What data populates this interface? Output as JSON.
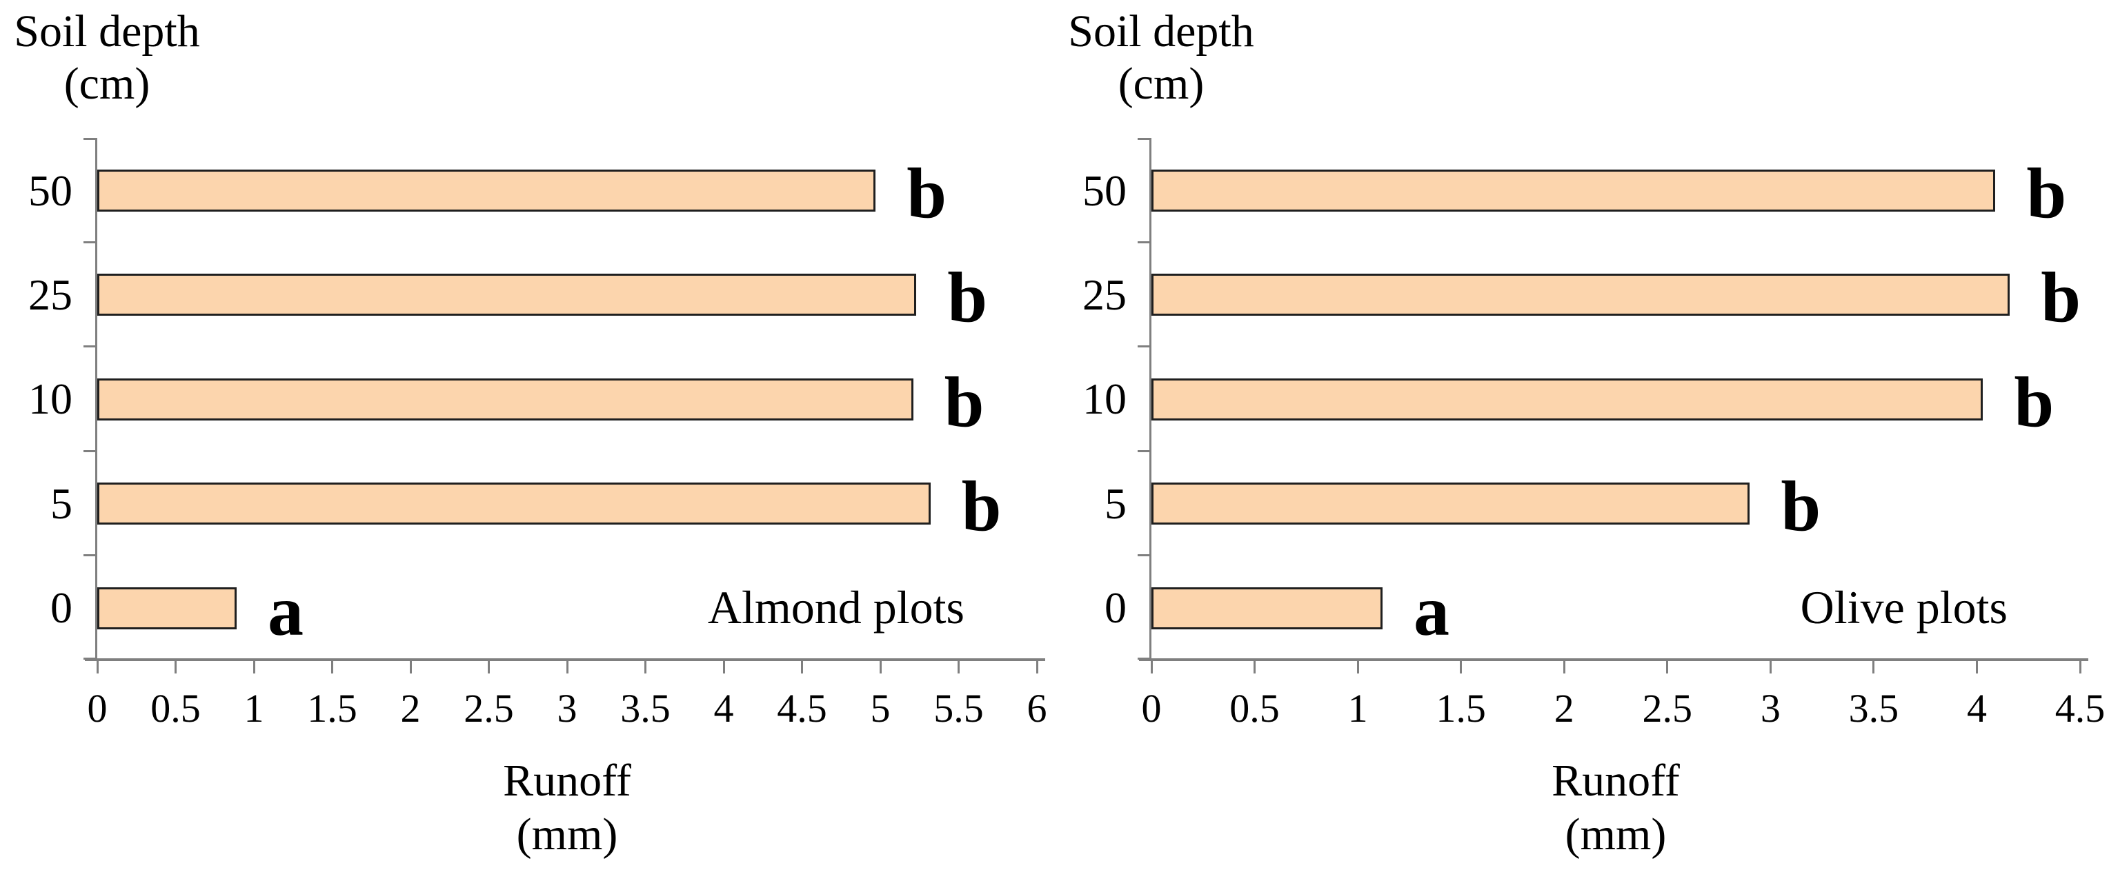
{
  "figure": {
    "background": "#FFFFFF",
    "bar_fill": "#FCD5AD",
    "bar_border": "#1F1F1F",
    "axis_color": "#7F7F7F",
    "text_color": "#000000"
  },
  "chart_data": [
    {
      "type": "bar",
      "orientation": "horizontal",
      "title": "Almond plots",
      "y_axis_title_line1": "Soil depth",
      "y_axis_title_line2": "(cm)",
      "x_axis_title_line1": "Runoff",
      "x_axis_title_line2": "(mm)",
      "categories": [
        "50",
        "25",
        "10",
        "5",
        "0"
      ],
      "values": [
        4.97,
        5.23,
        5.21,
        5.32,
        0.89
      ],
      "sig_letters": [
        "b",
        "b",
        "b",
        "b",
        "a"
      ],
      "xlim": [
        0,
        6
      ],
      "x_tick_step": 0.5,
      "x_tick_labels": [
        "0",
        "0.5",
        "1",
        "1.5",
        "2",
        "2.5",
        "3",
        "3.5",
        "4",
        "4.5",
        "5",
        "5.5",
        "6"
      ],
      "grid": false,
      "legend": false
    },
    {
      "type": "bar",
      "orientation": "horizontal",
      "title": "Olive plots",
      "y_axis_title_line1": "Soil depth",
      "y_axis_title_line2": "(cm)",
      "x_axis_title_line1": "Runoff",
      "x_axis_title_line2": "(mm)",
      "categories": [
        "50",
        "25",
        "10",
        "5",
        "0"
      ],
      "values": [
        4.09,
        4.16,
        4.03,
        2.9,
        1.12
      ],
      "sig_letters": [
        "b",
        "b",
        "b",
        "b",
        "a"
      ],
      "xlim": [
        0,
        4.5
      ],
      "x_tick_step": 0.5,
      "x_tick_labels": [
        "0",
        "0.5",
        "1",
        "1.5",
        "2",
        "2.5",
        "3",
        "3.5",
        "4",
        "4.5"
      ],
      "grid": false,
      "legend": false
    }
  ]
}
